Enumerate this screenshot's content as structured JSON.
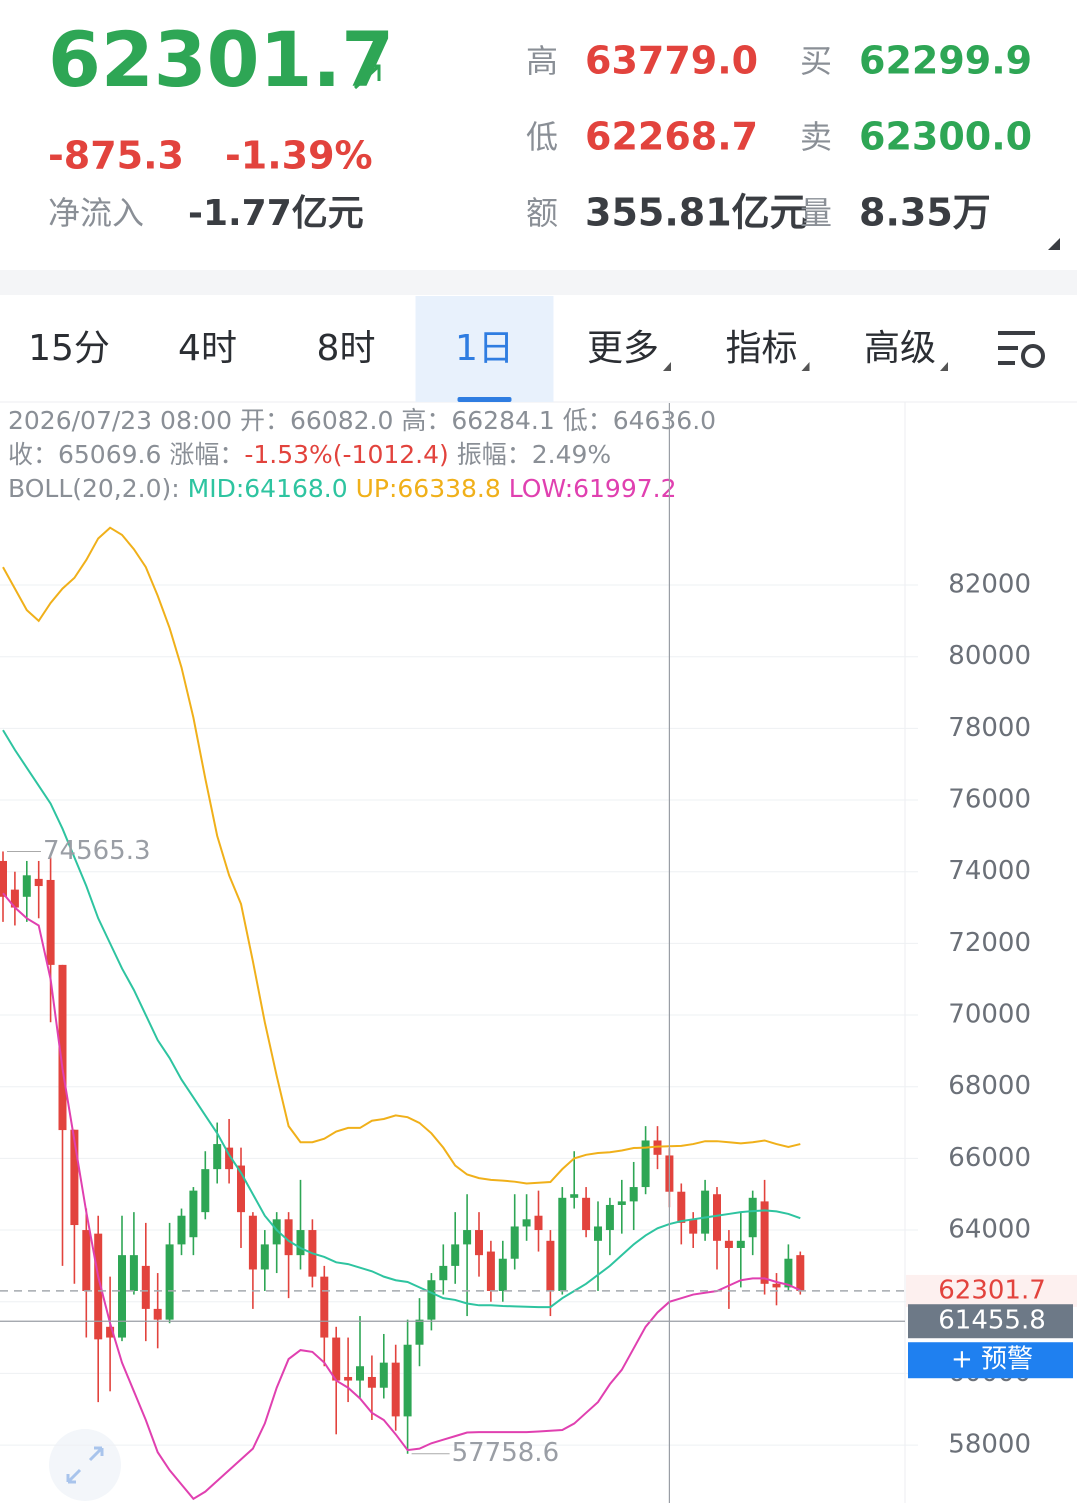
{
  "header": {
    "price": "62301.7",
    "change": "-875.3",
    "change_pct": "-1.39%",
    "net_inflow_label": "净流入",
    "net_inflow": "-1.77亿元",
    "stats": [
      {
        "label": "高",
        "value": "63779.0",
        "color": "#e2433d"
      },
      {
        "label": "买",
        "value": "62299.9",
        "color": "#2ea655"
      },
      {
        "label": "低",
        "value": "62268.7",
        "color": "#e2433d"
      },
      {
        "label": "卖",
        "value": "62300.0",
        "color": "#2ea655"
      },
      {
        "label": "额",
        "value": "355.81亿元",
        "color": "#3a3d42"
      },
      {
        "label": "量",
        "value": "8.35万",
        "color": "#3a3d42"
      }
    ]
  },
  "tabs": [
    {
      "label": "15分"
    },
    {
      "label": "4时"
    },
    {
      "label": "8时"
    },
    {
      "label": "1日",
      "selected": true
    },
    {
      "label": "更多",
      "menu": true
    },
    {
      "label": "指标",
      "menu": true
    },
    {
      "label": "高级",
      "menu": true
    }
  ],
  "info": {
    "line1": "2026/07/23 08:00 开：66082.0 高：66284.1 低：64636.0",
    "close": "收：65069.6 涨幅：",
    "change": "-1.53%(-1012.4)",
    "amplitude": " 振幅：2.49%",
    "boll_label": "BOLL(20,2.0): ",
    "boll_mid": "MID:64168.0 ",
    "boll_up": "UP:66338.8 ",
    "boll_low": "LOW:61997.2"
  },
  "alert_button": "+ 预警",
  "chart_data": {
    "type": "candlestick",
    "up_color": "#2ea655",
    "down_color": "#e2433d",
    "open": [
      74300,
      73500,
      73300,
      73800,
      73770,
      71400,
      66800,
      64000,
      63900,
      61300,
      61000,
      62300,
      63000,
      61800,
      61500,
      63600,
      63800,
      64500,
      65700,
      66300,
      65800,
      64400,
      62900,
      63600,
      64300,
      63300,
      64000,
      62700,
      61000,
      59900,
      59800,
      59900,
      59600,
      60300,
      58800,
      60800,
      61500,
      62600,
      63000,
      63600,
      64000,
      63400,
      62300,
      63200,
      64100,
      64400,
      63700,
      62300,
      64900,
      64900,
      63700,
      64000,
      64700,
      64800,
      65200,
      66500,
      66082,
      65070,
      64300,
      63900,
      65000,
      63700,
      63500,
      63800,
      64800,
      62500,
      62400,
      63300
    ],
    "high": [
      74565.3,
      74000,
      74300,
      74300,
      74400,
      71400,
      66800,
      64600,
      64400,
      62700,
      64400,
      64500,
      64200,
      62800,
      64200,
      64600,
      65200,
      66200,
      67000,
      67100,
      66300,
      64500,
      64000,
      64500,
      64500,
      65400,
      64300,
      63000,
      61300,
      61000,
      61600,
      60500,
      61100,
      60800,
      61500,
      62100,
      62800,
      63600,
      64500,
      65000,
      64500,
      63700,
      63700,
      65000,
      65000,
      65100,
      64000,
      65200,
      66200,
      65200,
      64800,
      64900,
      65400,
      65900,
      66900,
      66900,
      66284.1,
      65300,
      64500,
      65400,
      65200,
      64000,
      64500,
      65100,
      65400,
      62800,
      63600,
      63400
    ],
    "low": [
      72600,
      72500,
      72600,
      72700,
      69800,
      63000,
      62500,
      61000,
      59200,
      59500,
      60900,
      62200,
      60900,
      60700,
      61400,
      63300,
      63300,
      64300,
      65300,
      65300,
      63500,
      61800,
      62300,
      62800,
      62100,
      62900,
      62400,
      60200,
      58300,
      59200,
      59300,
      58700,
      59300,
      58400,
      57758.6,
      60200,
      61200,
      62200,
      62500,
      61600,
      62700,
      62000,
      62000,
      62900,
      63700,
      63400,
      61600,
      62200,
      64600,
      63800,
      62300,
      63300,
      63900,
      64000,
      65000,
      65700,
      64636,
      63600,
      63500,
      63700,
      62900,
      61800,
      62400,
      63300,
      62200,
      61900,
      62300,
      62200
    ],
    "close": [
      73300,
      73000,
      73900,
      73600,
      71400,
      66790,
      64140,
      62300,
      60950,
      61000,
      63300,
      63300,
      61800,
      61500,
      63600,
      64400,
      65100,
      65700,
      66400,
      65700,
      64500,
      62900,
      63600,
      64300,
      63300,
      64000,
      62700,
      61000,
      59800,
      59800,
      60200,
      59600,
      60300,
      58800,
      60800,
      61500,
      62600,
      63000,
      63600,
      64000,
      63300,
      62300,
      63200,
      64100,
      64300,
      64000,
      62300,
      64900,
      65000,
      64000,
      64100,
      64700,
      64800,
      65200,
      66500,
      66100,
      65069.6,
      64200,
      63900,
      65100,
      63700,
      63500,
      63700,
      64900,
      62500,
      62400,
      63200,
      62301.7
    ],
    "overlays": [
      {
        "color": "#f0b01a",
        "values": [
          82500,
          81900,
          81300,
          81000,
          81500,
          81900,
          82200,
          82700,
          83300,
          83600,
          83400,
          83000,
          82500,
          81700,
          80800,
          79700,
          78300,
          76600,
          75000,
          73900,
          73100,
          71500,
          69800,
          68300,
          66900,
          66450,
          66450,
          66550,
          66750,
          66850,
          66850,
          67050,
          67100,
          67200,
          67150,
          66990,
          66700,
          66300,
          65800,
          65550,
          65450,
          65400,
          65380,
          65350,
          65300,
          65320,
          65340,
          65700,
          66000,
          66100,
          66150,
          66170,
          66220,
          66290,
          66300,
          66330,
          66338.8,
          66350,
          66400,
          66480,
          66480,
          66450,
          66420,
          66450,
          66500,
          66400,
          66320,
          66400
        ]
      },
      {
        "color": "#2ec4a0",
        "values": [
          77950,
          77400,
          76900,
          76400,
          75900,
          75200,
          74400,
          73600,
          72700,
          72000,
          71300,
          70700,
          70000,
          69300,
          68800,
          68200,
          67700,
          67200,
          66700,
          66100,
          65600,
          65000,
          64400,
          64000,
          63700,
          63500,
          63350,
          63250,
          63100,
          63050,
          62950,
          62850,
          62700,
          62600,
          62550,
          62400,
          62250,
          62100,
          62050,
          61950,
          61900,
          61900,
          61880,
          61870,
          61860,
          61850,
          61850,
          62100,
          62300,
          62500,
          62750,
          63000,
          63300,
          63600,
          63850,
          64050,
          64168,
          64250,
          64300,
          64350,
          64400,
          64450,
          64500,
          64530,
          64550,
          64520,
          64450,
          64330
        ]
      },
      {
        "color": "#e040b0",
        "values": [
          73400,
          73000,
          72700,
          72500,
          71000,
          68500,
          66500,
          64500,
          62700,
          61400,
          60300,
          59500,
          58700,
          57800,
          57300,
          56900,
          56500,
          56700,
          57000,
          57300,
          57600,
          57900,
          58600,
          59600,
          60400,
          60650,
          60600,
          60300,
          59800,
          59600,
          59300,
          58900,
          58700,
          58300,
          57860,
          57900,
          58050,
          58150,
          58250,
          58350,
          58360,
          58360,
          58360,
          58360,
          58360,
          58380,
          58400,
          58420,
          58600,
          58900,
          59200,
          59700,
          60100,
          60700,
          61300,
          61700,
          61997.2,
          62100,
          62200,
          62250,
          62300,
          62450,
          62600,
          62650,
          62650,
          62550,
          62470,
          62320
        ]
      }
    ],
    "ylim": [
      56400,
      84200
    ],
    "yticks": [
      58000,
      60000,
      62000,
      64000,
      66000,
      68000,
      70000,
      72000,
      74000,
      76000,
      78000,
      80000,
      82000
    ],
    "grid": true,
    "crosshair_index": 56,
    "crosshair_value": 61455.8
  }
}
